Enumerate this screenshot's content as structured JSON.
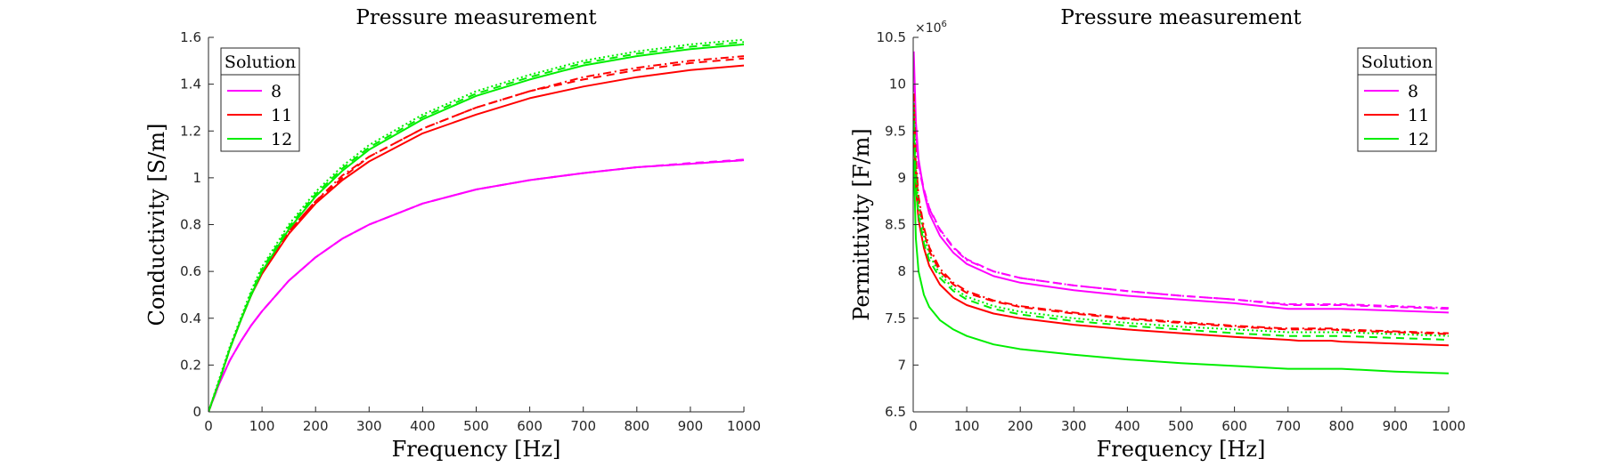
{
  "chart_data": [
    {
      "type": "line",
      "title": "Pressure measurement",
      "xlabel": "Frequency [Hz]",
      "ylabel": "Conductivity [S/m]",
      "xlim": [
        0,
        1000
      ],
      "ylim": [
        0,
        1.6
      ],
      "xticks": [
        "0",
        "100",
        "200",
        "300",
        "400",
        "500",
        "600",
        "700",
        "800",
        "900",
        "1000"
      ],
      "yticks": [
        "0",
        "0.2",
        "0.4",
        "0.6",
        "0.8",
        "1",
        "1.2",
        "1.4",
        "1.6"
      ],
      "grid": false,
      "legend": {
        "title": "Solution",
        "position": "top-left",
        "entries": [
          "8",
          "11",
          "12"
        ]
      },
      "x": [
        0,
        20,
        40,
        60,
        80,
        100,
        150,
        200,
        250,
        300,
        400,
        500,
        600,
        700,
        800,
        900,
        1000
      ],
      "series": [
        {
          "name": "8",
          "color": "#ff00ff",
          "style": "solid",
          "values": [
            0,
            0.12,
            0.22,
            0.3,
            0.37,
            0.43,
            0.56,
            0.66,
            0.74,
            0.8,
            0.89,
            0.95,
            0.99,
            1.02,
            1.045,
            1.06,
            1.075
          ]
        },
        {
          "color": "#ff00ff",
          "style": "dashed",
          "values": [
            0,
            0.12,
            0.22,
            0.3,
            0.37,
            0.43,
            0.56,
            0.66,
            0.74,
            0.8,
            0.89,
            0.95,
            0.99,
            1.02,
            1.045,
            1.063,
            1.078
          ]
        },
        {
          "color": "#ff00ff",
          "style": "dashdot",
          "values": [
            0,
            0.12,
            0.22,
            0.3,
            0.37,
            0.43,
            0.56,
            0.66,
            0.74,
            0.8,
            0.89,
            0.95,
            0.99,
            1.02,
            1.045,
            1.06,
            1.075
          ]
        },
        {
          "name": "11",
          "color": "#ff0000",
          "style": "solid",
          "values": [
            0,
            0.13,
            0.27,
            0.39,
            0.5,
            0.59,
            0.76,
            0.89,
            0.99,
            1.07,
            1.19,
            1.27,
            1.34,
            1.39,
            1.43,
            1.46,
            1.48
          ]
        },
        {
          "color": "#ff0000",
          "style": "dashed",
          "values": [
            0,
            0.13,
            0.27,
            0.39,
            0.5,
            0.6,
            0.77,
            0.9,
            1.0,
            1.09,
            1.21,
            1.3,
            1.37,
            1.42,
            1.46,
            1.49,
            1.51
          ]
        },
        {
          "color": "#ff0000",
          "style": "dashdot",
          "values": [
            0,
            0.13,
            0.27,
            0.39,
            0.5,
            0.6,
            0.77,
            0.9,
            1.01,
            1.09,
            1.21,
            1.3,
            1.37,
            1.43,
            1.47,
            1.5,
            1.52
          ]
        },
        {
          "name": "12",
          "color": "#00ee00",
          "style": "solid",
          "values": [
            0,
            0.13,
            0.27,
            0.39,
            0.5,
            0.6,
            0.78,
            0.92,
            1.03,
            1.12,
            1.25,
            1.35,
            1.42,
            1.48,
            1.52,
            1.55,
            1.57
          ]
        },
        {
          "color": "#00ee00",
          "style": "dashed",
          "values": [
            0,
            0.13,
            0.27,
            0.39,
            0.51,
            0.61,
            0.79,
            0.93,
            1.04,
            1.13,
            1.26,
            1.36,
            1.43,
            1.49,
            1.53,
            1.56,
            1.58
          ]
        },
        {
          "color": "#00ee00",
          "style": "dotted",
          "values": [
            0,
            0.14,
            0.28,
            0.4,
            0.52,
            0.62,
            0.8,
            0.94,
            1.05,
            1.14,
            1.27,
            1.37,
            1.44,
            1.5,
            1.54,
            1.57,
            1.59
          ]
        }
      ]
    },
    {
      "type": "line",
      "title": "Pressure measurement",
      "xlabel": "Frequency [Hz]",
      "ylabel": "Permittivity [F/m]",
      "xlim": [
        0,
        1000
      ],
      "ylim": [
        6.5,
        10.5
      ],
      "y_exponent_label": "×10",
      "y_exponent_value": "6",
      "xticks": [
        "0",
        "100",
        "200",
        "300",
        "400",
        "500",
        "600",
        "700",
        "800",
        "900",
        "1000"
      ],
      "yticks": [
        "6.5",
        "7",
        "7.5",
        "8",
        "8.5",
        "9",
        "9.5",
        "10",
        "10.5"
      ],
      "grid": false,
      "legend": {
        "title": "Solution",
        "position": "top-right",
        "entries": [
          "8",
          "11",
          "12"
        ]
      },
      "x": [
        1,
        5,
        10,
        20,
        30,
        50,
        75,
        100,
        150,
        200,
        300,
        400,
        500,
        600,
        700,
        720,
        780,
        800,
        900,
        1000
      ],
      "series": [
        {
          "name": "8",
          "color": "#ff00ff",
          "style": "solid",
          "values": [
            10.35,
            9.6,
            9.2,
            8.85,
            8.62,
            8.38,
            8.2,
            8.08,
            7.95,
            7.88,
            7.8,
            7.74,
            7.7,
            7.66,
            7.6,
            7.6,
            7.6,
            7.6,
            7.58,
            7.56
          ]
        },
        {
          "color": "#ff00ff",
          "style": "dashed",
          "values": [
            10.0,
            9.5,
            9.15,
            8.88,
            8.68,
            8.45,
            8.26,
            8.13,
            8.0,
            7.93,
            7.85,
            7.79,
            7.74,
            7.7,
            7.64,
            7.64,
            7.64,
            7.64,
            7.62,
            7.6
          ]
        },
        {
          "color": "#ff00ff",
          "style": "dashdot",
          "values": [
            9.9,
            9.45,
            9.12,
            8.86,
            8.67,
            8.44,
            8.25,
            8.12,
            8.0,
            7.93,
            7.85,
            7.79,
            7.74,
            7.7,
            7.65,
            7.65,
            7.65,
            7.65,
            7.63,
            7.61
          ]
        },
        {
          "name": "11",
          "color": "#ff0000",
          "style": "solid",
          "values": [
            9.5,
            8.9,
            8.55,
            8.25,
            8.06,
            7.86,
            7.72,
            7.64,
            7.55,
            7.5,
            7.43,
            7.38,
            7.34,
            7.3,
            7.27,
            7.26,
            7.26,
            7.25,
            7.23,
            7.21
          ]
        },
        {
          "color": "#ff0000",
          "style": "dashed",
          "values": [
            9.8,
            9.1,
            8.75,
            8.42,
            8.22,
            8.0,
            7.86,
            7.77,
            7.68,
            7.62,
            7.55,
            7.49,
            7.45,
            7.41,
            7.38,
            7.38,
            7.38,
            7.37,
            7.35,
            7.33
          ]
        },
        {
          "color": "#ff0000",
          "style": "dashdot",
          "values": [
            9.9,
            9.2,
            8.8,
            8.47,
            8.26,
            8.03,
            7.88,
            7.79,
            7.69,
            7.63,
            7.56,
            7.5,
            7.46,
            7.42,
            7.39,
            7.39,
            7.39,
            7.38,
            7.36,
            7.34
          ]
        },
        {
          "name": "12",
          "color": "#00ee00",
          "style": "solid",
          "values": [
            9.2,
            8.35,
            8.0,
            7.75,
            7.62,
            7.48,
            7.38,
            7.31,
            7.22,
            7.17,
            7.11,
            7.06,
            7.02,
            6.99,
            6.96,
            6.96,
            6.96,
            6.96,
            6.93,
            6.91
          ]
        },
        {
          "color": "#00ee00",
          "style": "dashed",
          "values": [
            9.6,
            8.9,
            8.6,
            8.3,
            8.12,
            7.93,
            7.79,
            7.7,
            7.6,
            7.54,
            7.47,
            7.42,
            7.38,
            7.34,
            7.31,
            7.31,
            7.31,
            7.31,
            7.29,
            7.27
          ]
        },
        {
          "color": "#00ee00",
          "style": "dotted",
          "values": [
            9.8,
            9.05,
            8.7,
            8.38,
            8.18,
            7.97,
            7.82,
            7.73,
            7.63,
            7.57,
            7.5,
            7.45,
            7.41,
            7.38,
            7.35,
            7.35,
            7.35,
            7.35,
            7.33,
            7.31
          ]
        }
      ]
    }
  ]
}
